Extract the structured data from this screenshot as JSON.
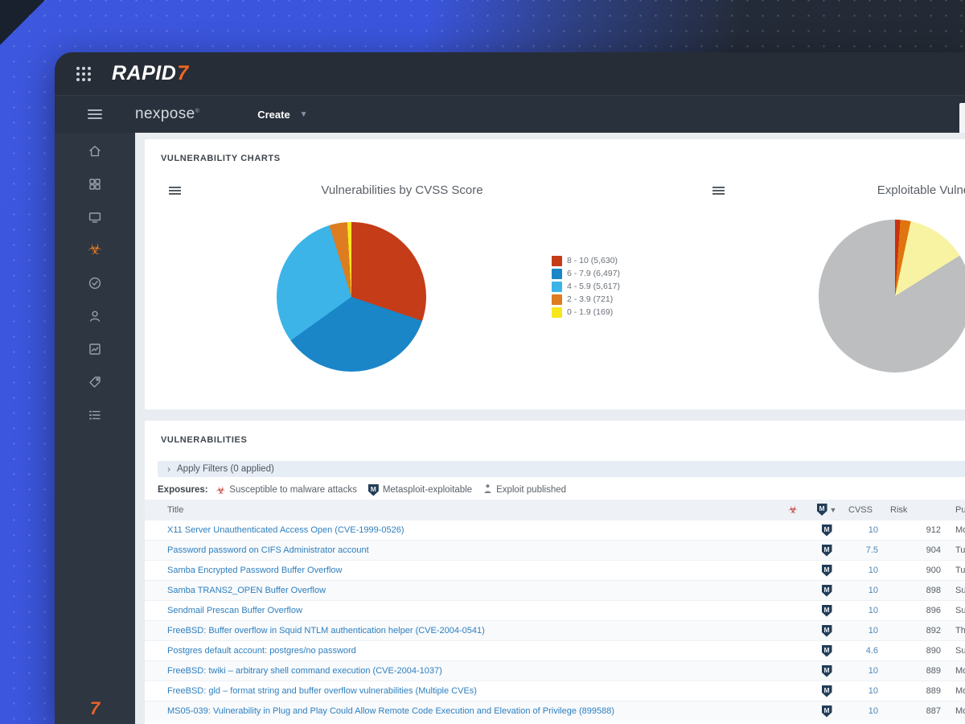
{
  "window": {
    "brand": {
      "rapid": "RAPID",
      "seven": "7"
    },
    "product": "nexpose",
    "product_mark": "®",
    "create_label": "Create"
  },
  "sidebar": {
    "items": [
      {
        "name": "home",
        "icon": "home",
        "active": false
      },
      {
        "name": "dashboards",
        "icon": "grid",
        "active": false
      },
      {
        "name": "assets",
        "icon": "monitor",
        "active": false
      },
      {
        "name": "vulnerabilities",
        "icon": "biohazard",
        "active": true
      },
      {
        "name": "policies",
        "icon": "clock-check",
        "active": false
      },
      {
        "name": "users",
        "icon": "user",
        "active": false
      },
      {
        "name": "reports",
        "icon": "report",
        "active": false
      },
      {
        "name": "tags",
        "icon": "tag",
        "active": false
      },
      {
        "name": "administration",
        "icon": "list",
        "active": false
      }
    ],
    "footer_logo": "7"
  },
  "charts_panel": {
    "section_title": "VULNERABILITY CHARTS"
  },
  "chart_data": [
    {
      "type": "pie",
      "title": "Vulnerabilities by CVSS Score",
      "labels": [
        "8 - 10",
        "6 - 7.9",
        "4 - 5.9",
        "2 - 3.9",
        "0 - 1.9"
      ],
      "values": [
        5630,
        6497,
        5617,
        721,
        169
      ],
      "legend_labels": [
        "8 - 10 (5,630)",
        "6 - 7.9 (6,497)",
        "4 - 5.9 (5,617)",
        "2 - 3.9 (721)",
        "0 - 1.9 (169)"
      ],
      "colors": [
        "#c43c18",
        "#1a86c8",
        "#3cb4e8",
        "#dd7c20",
        "#f8e71c"
      ],
      "legend_position": "right"
    },
    {
      "type": "pie",
      "title": "Exploitable Vulnerabilities",
      "labels": [
        "red",
        "orange",
        "yellow",
        "gray"
      ],
      "values": [
        1.1,
        2.2,
        12.8,
        83.9
      ],
      "values_note": "percent estimated from pixels; legend off-screen",
      "colors": [
        "#c8300e",
        "#e0750f",
        "#f8f3a2",
        "#bcbec0"
      ],
      "legend_position": "off-screen"
    }
  ],
  "vuln_panel": {
    "section_title": "VULNERABILITIES",
    "filters_bar": {
      "chevron": "›",
      "label": "Apply Filters (0 applied)"
    },
    "exposures": {
      "label": "Exposures:",
      "items": [
        {
          "icon": "biohazard",
          "label": "Susceptible to malware attacks"
        },
        {
          "icon": "metasploit",
          "label": "Metasploit-exploitable"
        },
        {
          "icon": "person",
          "label": "Exploit published"
        }
      ]
    },
    "table": {
      "columns": {
        "title": "Title",
        "cvss": "CVSS",
        "risk": "Risk",
        "published": "Published On"
      },
      "rows": [
        {
          "title": "X11 Server Unauthenticated Access Open (CVE-1999-0526)",
          "metasploit": true,
          "cvss": "10",
          "risk": "912",
          "published": "Mon"
        },
        {
          "title": "Password password on CIFS Administrator account",
          "metasploit": true,
          "cvss": "7.5",
          "risk": "904",
          "published": "Tue"
        },
        {
          "title": "Samba Encrypted Password Buffer Overflow",
          "metasploit": true,
          "cvss": "10",
          "risk": "900",
          "published": "Tue"
        },
        {
          "title": "Samba TRANS2_OPEN Buffer Overflow",
          "metasploit": true,
          "cvss": "10",
          "risk": "898",
          "published": "Sun"
        },
        {
          "title": "Sendmail Prescan Buffer Overflow",
          "metasploit": true,
          "cvss": "10",
          "risk": "896",
          "published": "Sun"
        },
        {
          "title": "FreeBSD: Buffer overflow in Squid NTLM authentication helper (CVE-2004-0541)",
          "metasploit": true,
          "cvss": "10",
          "risk": "892",
          "published": "Thu"
        },
        {
          "title": "Postgres default account: postgres/no password",
          "metasploit": true,
          "cvss": "4.6",
          "risk": "890",
          "published": "Sun"
        },
        {
          "title": "FreeBSD: twiki – arbitrary shell command execution (CVE-2004-1037)",
          "metasploit": true,
          "cvss": "10",
          "risk": "889",
          "published": "Mon"
        },
        {
          "title": "FreeBSD: gld – format string and buffer overflow vulnerabilities (Multiple CVEs)",
          "metasploit": true,
          "cvss": "10",
          "risk": "889",
          "published": "Mon"
        },
        {
          "title": "MS05-039: Vulnerability in Plug and Play Could Allow Remote Code Execution and Elevation of Privilege (899588)",
          "metasploit": true,
          "cvss": "10",
          "risk": "887",
          "published": "Mon"
        }
      ]
    }
  },
  "colors": {
    "accent_orange": "#f16622",
    "link_blue": "#2e7fbe",
    "metasploit_navy": "#233d57",
    "biohazard_red": "#c13328",
    "sidebar_active_orange": "#e8791e"
  }
}
